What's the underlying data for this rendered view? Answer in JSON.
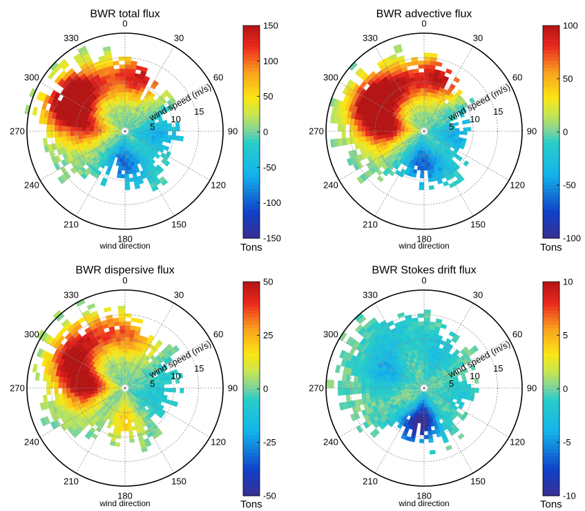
{
  "chart_data": [
    {
      "type": "heatmap",
      "subtype": "polar-rose",
      "title": "BWR total flux",
      "angular_axis": {
        "label": "wind direction",
        "ticks": [
          0,
          30,
          60,
          90,
          120,
          150,
          180,
          210,
          240,
          270,
          300,
          330
        ],
        "tick_labels": [
          "0",
          "30",
          "60",
          "90",
          "120",
          "150",
          "180",
          "210",
          "240",
          "270",
          "300",
          "330"
        ]
      },
      "radial_axis": {
        "label": "wind speed (m/s)",
        "ticks": [
          5,
          10,
          15
        ],
        "tick_labels": [
          "5",
          "10",
          "15"
        ],
        "max": 20
      },
      "colorbar": {
        "label": "Tons",
        "range": [
          -150,
          150
        ],
        "ticks": [
          150,
          100,
          50,
          0,
          -50,
          -100,
          -150
        ],
        "tick_labels": [
          "150",
          "100",
          "50",
          "0",
          "-50",
          "-100",
          "-150"
        ]
      },
      "hotspots": [
        {
          "direction": 295,
          "speed": 13,
          "value": 140
        },
        {
          "direction": 310,
          "speed": 11,
          "value": 110
        },
        {
          "direction": 345,
          "speed": 10,
          "value": 70
        },
        {
          "direction": 20,
          "speed": 11,
          "value": 130
        },
        {
          "direction": 275,
          "speed": 7,
          "value": 110
        },
        {
          "direction": 250,
          "speed": 9,
          "value": 10
        },
        {
          "direction": 100,
          "speed": 6,
          "value": -60
        },
        {
          "direction": 160,
          "speed": 7,
          "value": -50
        },
        {
          "direction": 190,
          "speed": 6,
          "value": -80
        },
        {
          "direction": 70,
          "speed": 10,
          "value": -20
        }
      ]
    },
    {
      "type": "heatmap",
      "subtype": "polar-rose",
      "title": "BWR advective flux",
      "angular_axis": {
        "label": "wind direction",
        "ticks": [
          0,
          30,
          60,
          90,
          120,
          150,
          180,
          210,
          240,
          270,
          300,
          330
        ],
        "tick_labels": [
          "0",
          "30",
          "60",
          "90",
          "120",
          "150",
          "180",
          "210",
          "240",
          "270",
          "300",
          "330"
        ]
      },
      "radial_axis": {
        "label": "wind speed (m/s)",
        "ticks": [
          5,
          10,
          15
        ],
        "tick_labels": [
          "5",
          "10",
          "15"
        ],
        "max": 20
      },
      "colorbar": {
        "label": "Tons",
        "range": [
          -100,
          100
        ],
        "ticks": [
          100,
          50,
          0,
          -50,
          -100
        ],
        "tick_labels": [
          "100",
          "50",
          "0",
          "-50",
          "-100"
        ]
      },
      "hotspots": [
        {
          "direction": 295,
          "speed": 12,
          "value": 90
        },
        {
          "direction": 315,
          "speed": 10,
          "value": 75
        },
        {
          "direction": 345,
          "speed": 10,
          "value": 55
        },
        {
          "direction": 20,
          "speed": 11,
          "value": 90
        },
        {
          "direction": 275,
          "speed": 7,
          "value": 95
        },
        {
          "direction": 250,
          "speed": 9,
          "value": 10
        },
        {
          "direction": 100,
          "speed": 6,
          "value": -40
        },
        {
          "direction": 160,
          "speed": 7,
          "value": -35
        },
        {
          "direction": 190,
          "speed": 6,
          "value": -55
        },
        {
          "direction": 70,
          "speed": 10,
          "value": -15
        }
      ]
    },
    {
      "type": "heatmap",
      "subtype": "polar-rose",
      "title": "BWR dispersive flux",
      "angular_axis": {
        "label": "wind direction",
        "ticks": [
          0,
          30,
          60,
          90,
          120,
          150,
          180,
          210,
          240,
          270,
          300,
          330
        ],
        "tick_labels": [
          "0",
          "30",
          "60",
          "90",
          "120",
          "150",
          "180",
          "210",
          "240",
          "270",
          "300",
          "330"
        ]
      },
      "radial_axis": {
        "label": "wind speed (m/s)",
        "ticks": [
          5,
          10,
          15
        ],
        "tick_labels": [
          "5",
          "10",
          "15"
        ],
        "max": 20
      },
      "colorbar": {
        "label": "Tons",
        "range": [
          -50,
          50
        ],
        "ticks": [
          50,
          25,
          0,
          -25,
          -50
        ],
        "tick_labels": [
          "50",
          "25",
          "0",
          "-25",
          "-50"
        ]
      },
      "hotspots": [
        {
          "direction": 295,
          "speed": 12,
          "value": 40
        },
        {
          "direction": 320,
          "speed": 12,
          "value": 25
        },
        {
          "direction": 350,
          "speed": 11,
          "value": 25
        },
        {
          "direction": 20,
          "speed": 10,
          "value": 20
        },
        {
          "direction": 275,
          "speed": 7,
          "value": 48
        },
        {
          "direction": 250,
          "speed": 9,
          "value": 10
        },
        {
          "direction": 110,
          "speed": 6,
          "value": -10
        },
        {
          "direction": 180,
          "speed": 6,
          "value": 20
        },
        {
          "direction": 70,
          "speed": 10,
          "value": -8
        }
      ]
    },
    {
      "type": "heatmap",
      "subtype": "polar-rose",
      "title": "BWR Stokes drift flux",
      "angular_axis": {
        "label": "wind direction",
        "ticks": [
          0,
          30,
          60,
          90,
          120,
          150,
          180,
          210,
          240,
          270,
          300,
          330
        ],
        "tick_labels": [
          "0",
          "30",
          "60",
          "90",
          "120",
          "150",
          "180",
          "210",
          "240",
          "270",
          "300",
          "330"
        ]
      },
      "radial_axis": {
        "label": "wind speed (m/s)",
        "ticks": [
          5,
          10,
          15
        ],
        "tick_labels": [
          "5",
          "10",
          "15"
        ],
        "max": 20
      },
      "colorbar": {
        "label": "Tons",
        "range": [
          -10,
          10
        ],
        "ticks": [
          10,
          5,
          0,
          -5,
          -10
        ],
        "tick_labels": [
          "10",
          "5",
          "0",
          "-5",
          "-10"
        ]
      },
      "hotspots": [
        {
          "direction": 295,
          "speed": 8,
          "value": -4
        },
        {
          "direction": 180,
          "speed": 6,
          "value": -8
        },
        {
          "direction": 200,
          "speed": 8,
          "value": -5
        },
        {
          "direction": 20,
          "speed": 7,
          "value": -3
        },
        {
          "direction": 330,
          "speed": 12,
          "value": -2
        },
        {
          "direction": 100,
          "speed": 7,
          "value": -2
        }
      ]
    }
  ]
}
